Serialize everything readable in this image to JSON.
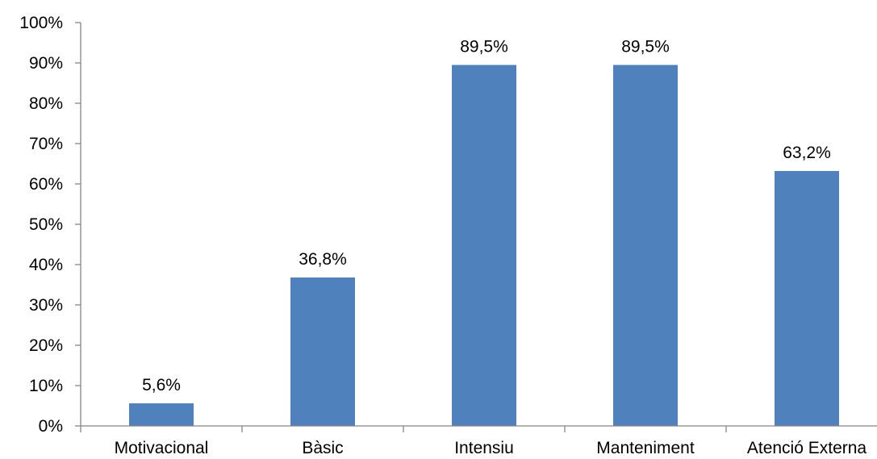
{
  "chart_data": {
    "type": "bar",
    "categories": [
      "Motivacional",
      "Bàsic",
      "Intensiu",
      "Manteniment",
      "Atenció Externa"
    ],
    "values": [
      5.6,
      36.8,
      89.5,
      89.5,
      63.2
    ],
    "data_labels": [
      "5,6%",
      "36,8%",
      "89,5%",
      "89,5%",
      "63,2%"
    ],
    "ylim": [
      0,
      100
    ],
    "yticks": [
      "0%",
      "10%",
      "20%",
      "30%",
      "40%",
      "50%",
      "60%",
      "70%",
      "80%",
      "90%",
      "100%"
    ],
    "grid": false,
    "legend": "none",
    "bar_color": "#4F81BD",
    "axis_color": "#868686"
  }
}
